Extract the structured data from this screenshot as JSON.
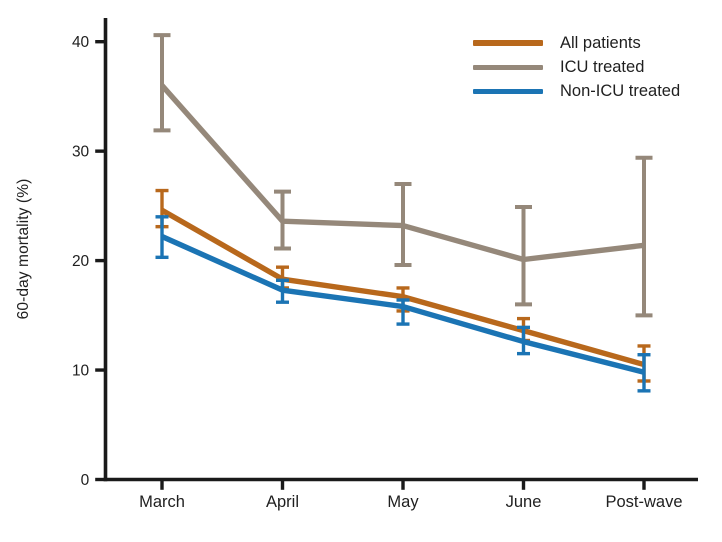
{
  "chart_data": {
    "type": "line",
    "title": "",
    "xlabel": "",
    "ylabel": "60-day mortality (%)",
    "categories": [
      "March",
      "April",
      "May",
      "June",
      "Post-wave"
    ],
    "ylim": [
      0,
      40
    ],
    "yticks": [
      0,
      10,
      20,
      30,
      40
    ],
    "grid": false,
    "legend_position": "top-right",
    "error_bars": "95% CI with end caps",
    "axis_color": "#1a1a1a",
    "text_color": "#1f1f1f",
    "series": [
      {
        "name": "All patients",
        "color": "#b8681c",
        "values": [
          24.6,
          18.3,
          16.7,
          13.6,
          10.5
        ],
        "ci_low": [
          23.1,
          17.5,
          15.4,
          12.7,
          9.0
        ],
        "ci_high": [
          26.4,
          19.4,
          17.5,
          14.7,
          12.2
        ]
      },
      {
        "name": "ICU treated",
        "color": "#95887a",
        "values": [
          36.0,
          23.6,
          23.2,
          20.1,
          21.4
        ],
        "ci_low": [
          31.9,
          21.1,
          19.6,
          16.0,
          15.0
        ],
        "ci_high": [
          40.6,
          26.3,
          27.0,
          24.9,
          29.4
        ]
      },
      {
        "name": "Non-ICU treated",
        "color": "#1b74b4",
        "values": [
          22.2,
          17.3,
          15.8,
          12.6,
          9.8
        ],
        "ci_low": [
          20.3,
          16.2,
          14.2,
          11.5,
          8.1
        ],
        "ci_high": [
          24.0,
          18.2,
          16.4,
          13.9,
          11.4
        ]
      }
    ]
  }
}
